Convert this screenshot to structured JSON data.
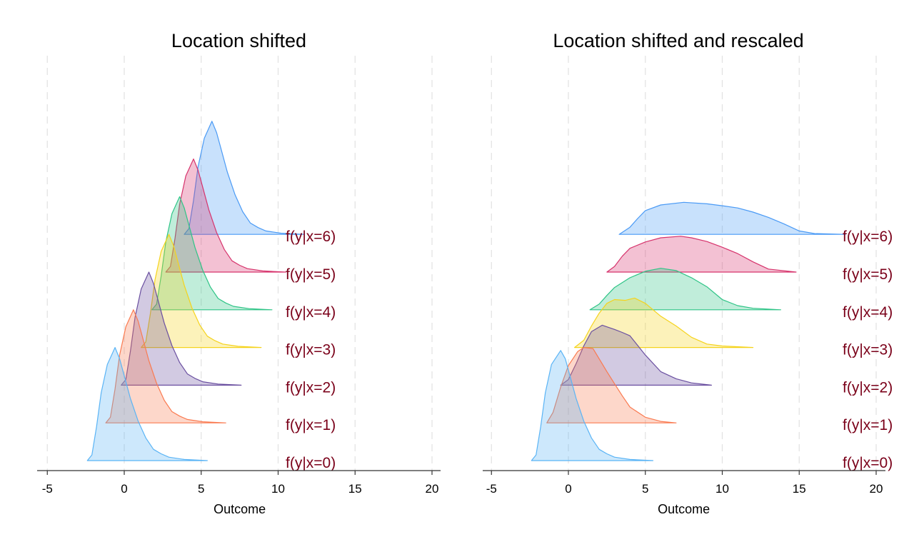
{
  "chart_data": [
    {
      "type": "area",
      "subtype": "ridgeline",
      "title": "Location shifted",
      "xlabel": "Outcome",
      "xlim": [
        -5.5,
        20.7
      ],
      "xticks": [
        "-5",
        "0",
        "5",
        "10",
        "15",
        "20"
      ],
      "grid": "vertical dashed",
      "series": [
        {
          "name": "f(y|x=0)",
          "color": "#5ab4f5",
          "x": [
            -2.4,
            -2.1,
            -1.8,
            -1.5,
            -1.1,
            -0.6,
            -0.3,
            0,
            0.4,
            0.9,
            1.4,
            1.9,
            2.4,
            2.9,
            3.9,
            5.4
          ],
          "density": [
            0,
            0.15,
            0.9,
            1.8,
            2.55,
            3.0,
            2.7,
            2.25,
            1.65,
            1.05,
            0.6,
            0.3,
            0.18,
            0.09,
            0.03,
            0
          ]
        },
        {
          "name": "f(y|x=1)",
          "color": "#fa7a50",
          "x": [
            -1.2,
            -0.9,
            -0.6,
            -0.3,
            0.1,
            0.6,
            0.9,
            1.2,
            1.6,
            2.1,
            2.6,
            3.1,
            3.6,
            4.1,
            5.1,
            6.6
          ],
          "density": [
            0,
            0.15,
            0.9,
            1.8,
            2.55,
            3.0,
            2.7,
            2.25,
            1.65,
            1.05,
            0.6,
            0.3,
            0.18,
            0.09,
            0.03,
            0
          ]
        },
        {
          "name": "f(y|x=2)",
          "color": "#6a4fa0",
          "x": [
            -0.2,
            0.1,
            0.4,
            0.7,
            1.1,
            1.6,
            1.9,
            2.2,
            2.6,
            3.1,
            3.6,
            4.1,
            4.6,
            5.1,
            6.1,
            7.6
          ],
          "density": [
            0,
            0.15,
            0.9,
            1.8,
            2.55,
            3.0,
            2.7,
            2.25,
            1.65,
            1.05,
            0.6,
            0.3,
            0.18,
            0.09,
            0.03,
            0
          ]
        },
        {
          "name": "f(y|x=3)",
          "color": "#f5d31c",
          "x": [
            1.1,
            1.4,
            1.7,
            2.0,
            2.4,
            2.9,
            3.2,
            3.5,
            3.9,
            4.4,
            4.9,
            5.4,
            5.9,
            6.4,
            7.4,
            8.9
          ],
          "density": [
            0,
            0.15,
            0.9,
            1.8,
            2.55,
            3.0,
            2.7,
            2.25,
            1.65,
            1.05,
            0.6,
            0.3,
            0.18,
            0.09,
            0.03,
            0
          ]
        },
        {
          "name": "f(y|x=4)",
          "color": "#2ec486",
          "x": [
            1.8,
            2.1,
            2.4,
            2.7,
            3.1,
            3.6,
            3.9,
            4.2,
            4.6,
            5.1,
            5.6,
            6.1,
            6.6,
            7.1,
            8.1,
            9.6
          ],
          "density": [
            0,
            0.15,
            0.9,
            1.8,
            2.55,
            3.0,
            2.7,
            2.25,
            1.65,
            1.05,
            0.6,
            0.3,
            0.18,
            0.09,
            0.03,
            0
          ]
        },
        {
          "name": "f(y|x=5)",
          "color": "#d6336c",
          "x": [
            2.7,
            3.0,
            3.3,
            3.6,
            4.0,
            4.5,
            4.8,
            5.1,
            5.5,
            6.0,
            6.5,
            7.0,
            7.5,
            8.0,
            9.0,
            10.5
          ],
          "density": [
            0,
            0.15,
            0.9,
            1.8,
            2.55,
            3.0,
            2.7,
            2.25,
            1.65,
            1.05,
            0.6,
            0.3,
            0.18,
            0.09,
            0.03,
            0
          ]
        },
        {
          "name": "f(y|x=6)",
          "color": "#4a9af5",
          "x": [
            3.9,
            4.2,
            4.5,
            4.8,
            5.2,
            5.7,
            6.0,
            6.3,
            6.7,
            7.2,
            7.7,
            8.2,
            8.7,
            9.2,
            10.2,
            11.7
          ],
          "density": [
            0,
            0.15,
            0.9,
            1.8,
            2.55,
            3.0,
            2.7,
            2.25,
            1.65,
            1.05,
            0.6,
            0.3,
            0.18,
            0.09,
            0.03,
            0
          ]
        }
      ]
    },
    {
      "type": "area",
      "subtype": "ridgeline",
      "title": "Location shifted and rescaled",
      "xlabel": "Outcome",
      "xlim": [
        -5.5,
        20.7
      ],
      "xticks": [
        "-5",
        "0",
        "5",
        "10",
        "15",
        "20"
      ],
      "grid": "vertical dashed",
      "series": [
        {
          "name": "f(y|x=0)",
          "color": "#5ab4f5",
          "x": [
            -2.4,
            -2.1,
            -1.8,
            -1.5,
            -1.1,
            -0.5,
            -0.2,
            0.1,
            0.5,
            1.0,
            1.5,
            2.0,
            2.5,
            3.0,
            4.0,
            5.5
          ],
          "density": [
            0,
            0.15,
            0.9,
            1.8,
            2.55,
            2.92,
            2.7,
            2.25,
            1.65,
            1.05,
            0.6,
            0.3,
            0.18,
            0.09,
            0.03,
            0
          ]
        },
        {
          "name": "f(y|x=1)",
          "color": "#fa7a50",
          "x": [
            -1.4,
            -1.0,
            -0.5,
            0,
            0.6,
            1.0,
            1.6,
            2.0,
            2.5,
            3.0,
            3.5,
            4.0,
            5.0,
            6.0,
            7.0
          ],
          "density": [
            0,
            0.28,
            0.95,
            1.52,
            1.89,
            2.0,
            1.97,
            1.7,
            1.36,
            1.04,
            0.72,
            0.42,
            0.15,
            0.04,
            0
          ]
        },
        {
          "name": "f(y|x=2)",
          "color": "#6a4fa0",
          "x": [
            -0.5,
            0,
            0.5,
            1,
            1.5,
            2.2,
            3,
            3.5,
            4,
            5,
            6,
            7,
            8,
            9.3
          ],
          "density": [
            0,
            0.15,
            0.57,
            1.04,
            1.42,
            1.59,
            1.48,
            1.4,
            1.31,
            0.8,
            0.36,
            0.17,
            0.06,
            0
          ]
        },
        {
          "name": "f(y|x=3)",
          "color": "#f5d31c",
          "x": [
            0.4,
            1,
            1.5,
            2,
            2.5,
            3,
            3.7,
            4.3,
            5,
            6,
            7,
            8,
            9,
            10,
            12
          ],
          "density": [
            0,
            0.19,
            0.57,
            0.91,
            1.17,
            1.27,
            1.25,
            1.31,
            1.17,
            0.83,
            0.57,
            0.27,
            0.09,
            0.04,
            0
          ]
        },
        {
          "name": "f(y|x=4)",
          "color": "#2ec486",
          "x": [
            1.4,
            2,
            2.5,
            3,
            4,
            5,
            6,
            7,
            8,
            9,
            10,
            11,
            12,
            13.8
          ],
          "density": [
            0,
            0.15,
            0.38,
            0.59,
            0.85,
            1.02,
            1.1,
            1.04,
            0.85,
            0.61,
            0.27,
            0.11,
            0.04,
            0
          ]
        },
        {
          "name": "f(y|x=5)",
          "color": "#d6336c",
          "x": [
            2.5,
            3,
            3.5,
            4,
            5,
            6,
            7.3,
            8,
            9,
            10,
            11,
            12,
            13,
            14.8
          ],
          "density": [
            0,
            0.15,
            0.42,
            0.63,
            0.8,
            0.91,
            0.95,
            0.91,
            0.81,
            0.66,
            0.49,
            0.27,
            0.08,
            0
          ]
        },
        {
          "name": "f(y|x=6)",
          "color": "#4a9af5",
          "x": [
            3.3,
            4,
            4.5,
            5,
            6,
            7.5,
            9,
            10,
            11,
            12,
            13,
            14,
            15,
            16,
            18
          ],
          "density": [
            0,
            0.19,
            0.42,
            0.63,
            0.78,
            0.85,
            0.81,
            0.76,
            0.7,
            0.59,
            0.45,
            0.28,
            0.09,
            0.02,
            0
          ]
        }
      ]
    }
  ],
  "label_color": "#7a0019"
}
